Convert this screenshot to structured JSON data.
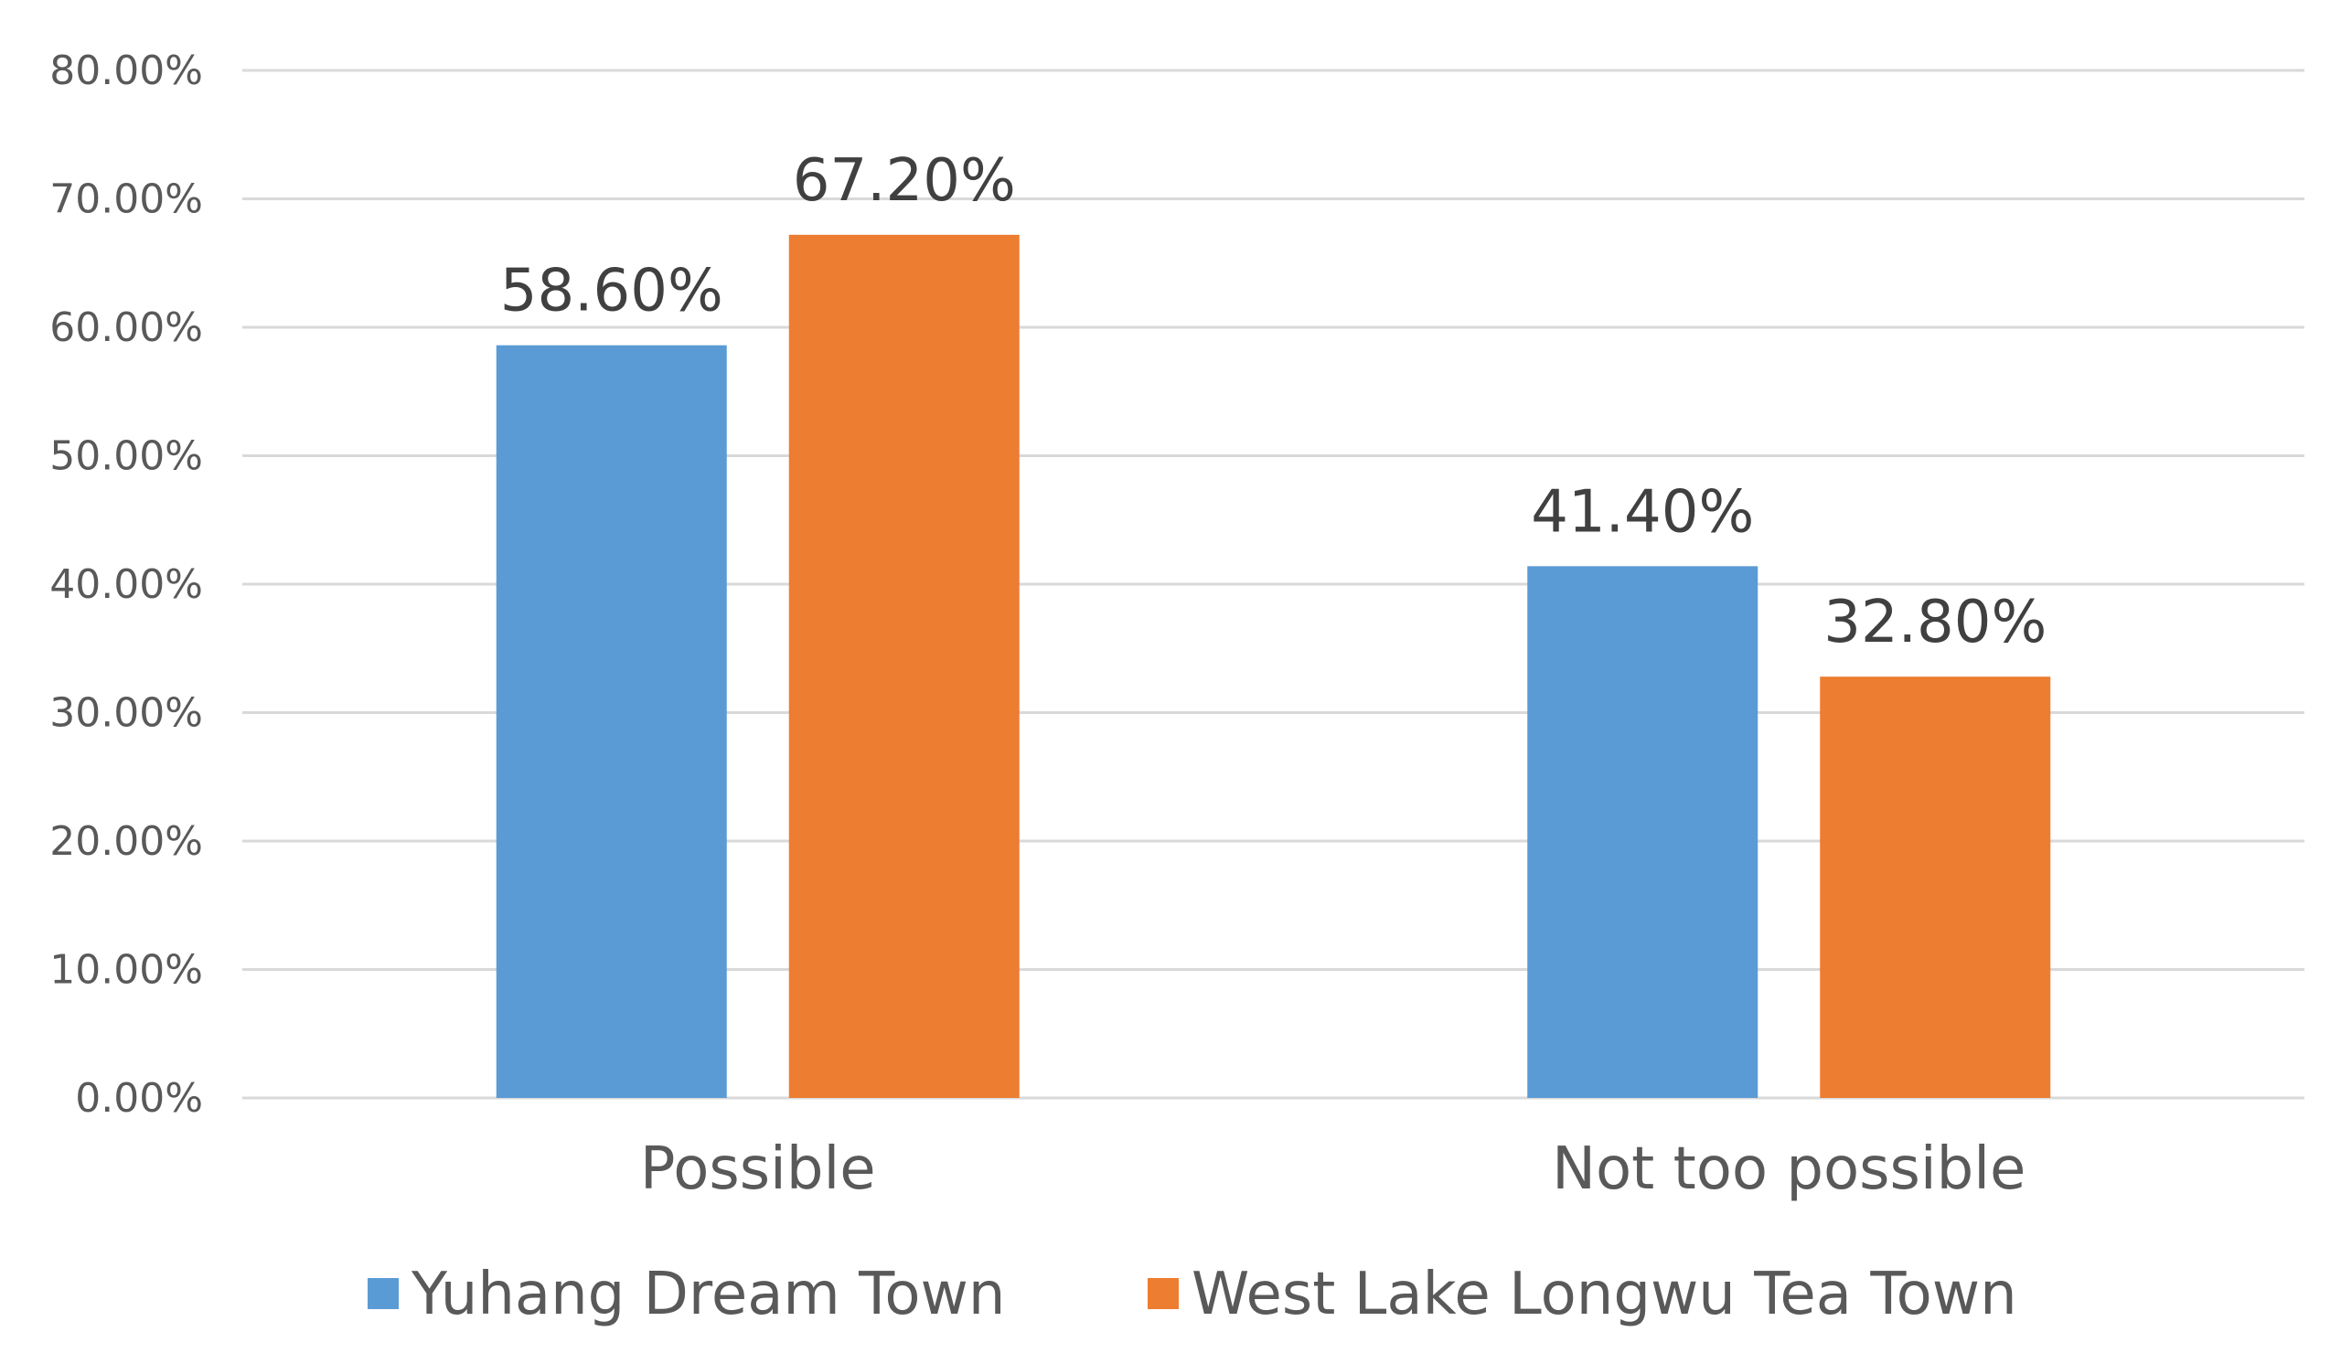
{
  "chart_data": {
    "type": "bar",
    "categories": [
      "Possible",
      "Not too possible"
    ],
    "series": [
      {
        "name": "Yuhang Dream Town",
        "color": "#5B9BD5",
        "values": [
          58.6,
          41.4
        ],
        "labels": [
          "58.60%",
          "41.40%"
        ]
      },
      {
        "name": "West Lake Longwu Tea Town",
        "color": "#ED7D31",
        "values": [
          67.2,
          32.8
        ],
        "labels": [
          "67.20%",
          "32.80%"
        ]
      }
    ],
    "ylim": [
      0,
      80
    ],
    "yticks": [
      "0.00%",
      "10.00%",
      "20.00%",
      "30.00%",
      "40.00%",
      "50.00%",
      "60.00%",
      "70.00%",
      "80.00%"
    ],
    "grid": true,
    "legend_position": "bottom",
    "xlabel": "",
    "ylabel": "",
    "title": ""
  },
  "colors": {
    "grid": "#D9D9D9",
    "text": "#595959"
  }
}
